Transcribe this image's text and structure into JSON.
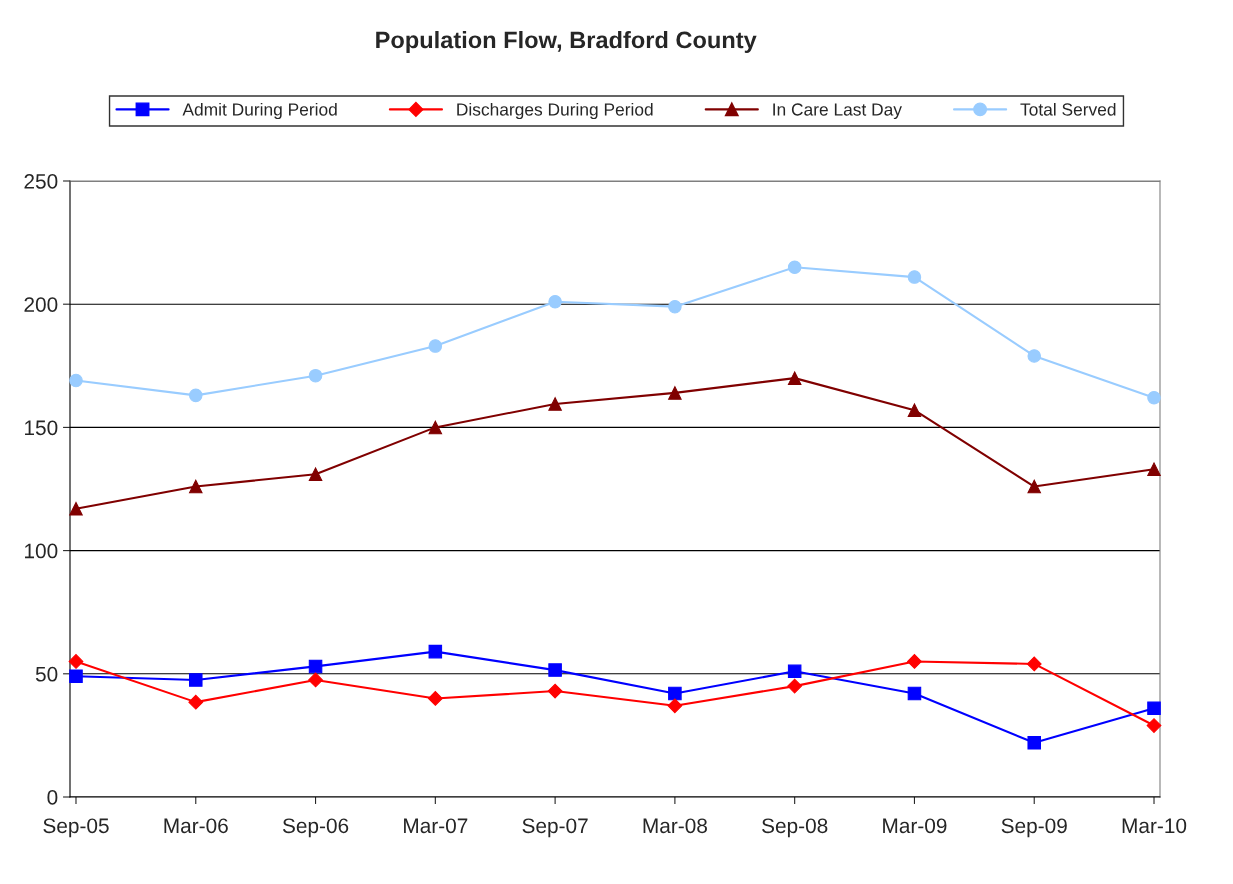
{
  "chart_data": {
    "type": "line",
    "title": "Population Flow, Bradford County",
    "categories": [
      "Sep-05",
      "Mar-06",
      "Sep-06",
      "Mar-07",
      "Sep-07",
      "Mar-08",
      "Sep-08",
      "Mar-09",
      "Sep-09",
      "Mar-10"
    ],
    "series": [
      {
        "name": "Admit During Period",
        "color": "#0000ff",
        "marker": "square",
        "values": [
          49,
          47.5,
          53,
          59,
          51.5,
          42,
          51,
          42,
          22,
          36
        ]
      },
      {
        "name": "Discharges During Period",
        "color": "#ff0000",
        "marker": "diamond",
        "values": [
          55,
          38.5,
          47.5,
          40,
          43,
          37,
          45,
          55,
          54,
          29
        ]
      },
      {
        "name": "In Care Last Day",
        "color": "#800000",
        "marker": "triangle",
        "values": [
          117,
          126,
          131,
          150,
          159.5,
          164,
          170,
          157,
          126,
          133
        ]
      },
      {
        "name": "Total Served",
        "color": "#99ccff",
        "marker": "circle",
        "values": [
          169,
          163,
          171,
          183,
          201,
          199,
          215,
          211,
          179,
          162
        ]
      }
    ],
    "ylim": [
      0,
      250
    ],
    "yticks": [
      0,
      50,
      100,
      150,
      200,
      250
    ],
    "grid": "y",
    "legend": "top"
  }
}
